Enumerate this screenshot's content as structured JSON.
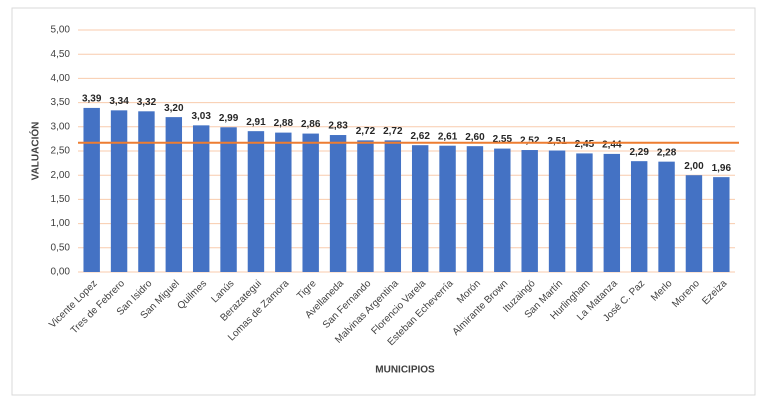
{
  "chart_data": {
    "type": "bar",
    "x_label": "MUNICIPIOS",
    "y_label": "VALUACIÓN",
    "categories": [
      "Vicente Lopez",
      "Tres de Febrero",
      "San Isidro",
      "San Miguel",
      "Quilmes",
      "Lanús",
      "Berazategui",
      "Lomas de Zamora",
      "Tigre",
      "Avellaneda",
      "San Fernando",
      "Malvinas Argentina",
      "Florencio Varela",
      "Esteban Echeverría",
      "Morón",
      "Almirante Brown",
      "Ituzaingó",
      "San Martín",
      "Hurlingham",
      "La Matanza",
      "José C. Paz",
      "Merlo",
      "Moreno",
      "Ezeiza"
    ],
    "values": [
      3.39,
      3.34,
      3.32,
      3.2,
      3.03,
      2.99,
      2.91,
      2.88,
      2.86,
      2.83,
      2.72,
      2.72,
      2.62,
      2.61,
      2.6,
      2.55,
      2.52,
      2.51,
      2.45,
      2.44,
      2.29,
      2.28,
      2.0,
      1.96
    ],
    "value_labels": [
      "3,39",
      "3,34",
      "3,32",
      "3,20",
      "3,03",
      "2,99",
      "2,91",
      "2,88",
      "2,86",
      "2,83",
      "2,72",
      "2,72",
      "2,62",
      "2,61",
      "2,60",
      "2,55",
      "2,52",
      "2,51",
      "2,45",
      "2,44",
      "2,29",
      "2,28",
      "2,00",
      "1,96"
    ],
    "color": "#4472c4",
    "ylim": [
      0,
      5
    ],
    "yticks": [
      {
        "value": 0,
        "label": "0,00"
      },
      {
        "value": 0.5,
        "label": "0,50"
      },
      {
        "value": 1,
        "label": "1,00"
      },
      {
        "value": 1.5,
        "label": "1,50"
      },
      {
        "value": 2,
        "label": "2,00"
      },
      {
        "value": 2.5,
        "label": "2,50"
      },
      {
        "value": 3,
        "label": "3,00"
      },
      {
        "value": 3.5,
        "label": "3,50"
      },
      {
        "value": 4,
        "label": "4,00"
      },
      {
        "value": 4.5,
        "label": "4,50"
      },
      {
        "value": 5,
        "label": "5,00"
      }
    ],
    "grid": true,
    "grid_color": "#f8cbad",
    "reference_line": 2.67,
    "reference_color": "#ed7d31"
  }
}
